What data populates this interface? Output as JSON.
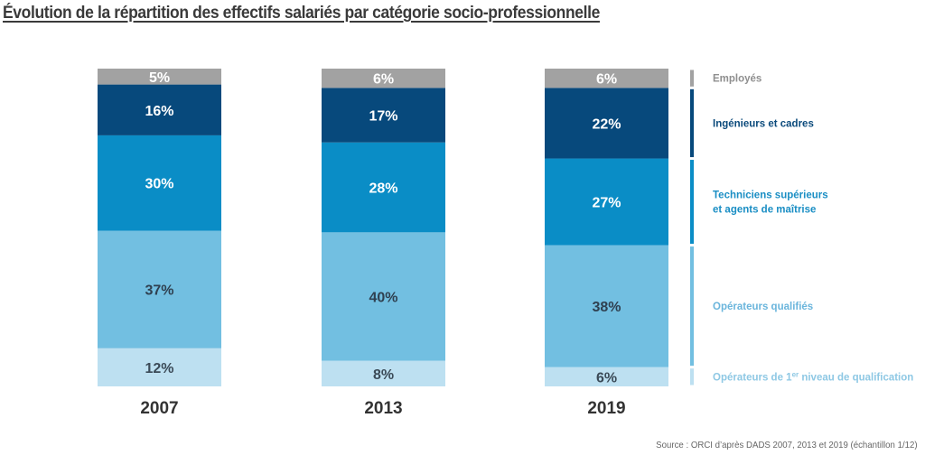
{
  "chart_data": {
    "type": "bar",
    "stacked": true,
    "normalized": true,
    "title": "Évolution de la répartition des effectifs salariés par catégorie socio-professionnelle",
    "xlabel": "",
    "ylabel": "",
    "categories": [
      "2007",
      "2013",
      "2019"
    ],
    "series": [
      {
        "name": "Opérateurs de 1er niveau de qualification",
        "legend_main": "Opérateurs de 1",
        "legend_sup": "er",
        "legend_rest": " niveau de qualification",
        "color": "#bde0f1",
        "label_color": "#3b4a57",
        "values": [
          12,
          8,
          6
        ]
      },
      {
        "name": "Opérateurs qualifiés",
        "color": "#72bfe1",
        "label_color": "#2f4050",
        "values": [
          37,
          40,
          38
        ]
      },
      {
        "name": "Techniciens supérieurs et agents de maîtrise",
        "legend_lines": [
          "Techniciens supérieurs",
          "et agents de maîtrise"
        ],
        "color": "#0a8dc6",
        "label_color": "#ffffff",
        "values": [
          30,
          28,
          27
        ]
      },
      {
        "name": "Ingénieurs et cadres",
        "color": "#07497c",
        "label_color": "#ffffff",
        "values": [
          16,
          17,
          22
        ]
      },
      {
        "name": "Employés",
        "color": "#a2a2a2",
        "label_color": "#ffffff",
        "values": [
          5,
          6,
          6
        ]
      }
    ],
    "legend_text_colors": [
      "#8ec8e4",
      "#6ab5dc",
      "#1a8ec4",
      "#0c4b7c",
      "#8f8f8f"
    ],
    "legend_position": "right",
    "value_format": "percent",
    "ylim": [
      0,
      100
    ],
    "grid": false,
    "source": "Source : ORCI d’après DADS 2007, 2013 et 2019 (échantillon 1/12)"
  }
}
